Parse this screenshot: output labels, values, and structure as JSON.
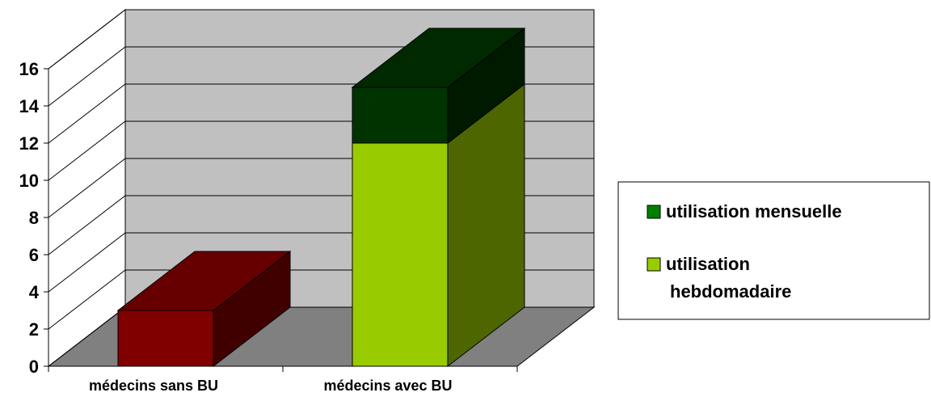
{
  "chart_data": {
    "type": "bar3d_stacked",
    "categories": [
      "médecins sans BU",
      "médecins avec BU"
    ],
    "series": [
      {
        "name": "utilisation mensuelle",
        "color": "#003300",
        "legend_color": "#008000",
        "values": [
          null,
          3
        ]
      },
      {
        "name": "utilisation hebdomadaire",
        "color": "#99cc00",
        "colors": [
          "#800000",
          "#99cc00"
        ],
        "values": [
          3,
          12
        ]
      }
    ],
    "ylim": [
      0,
      16
    ],
    "yticks": [
      0,
      2,
      4,
      6,
      8,
      10,
      12,
      14,
      16
    ],
    "grid": true,
    "legend": "right"
  }
}
